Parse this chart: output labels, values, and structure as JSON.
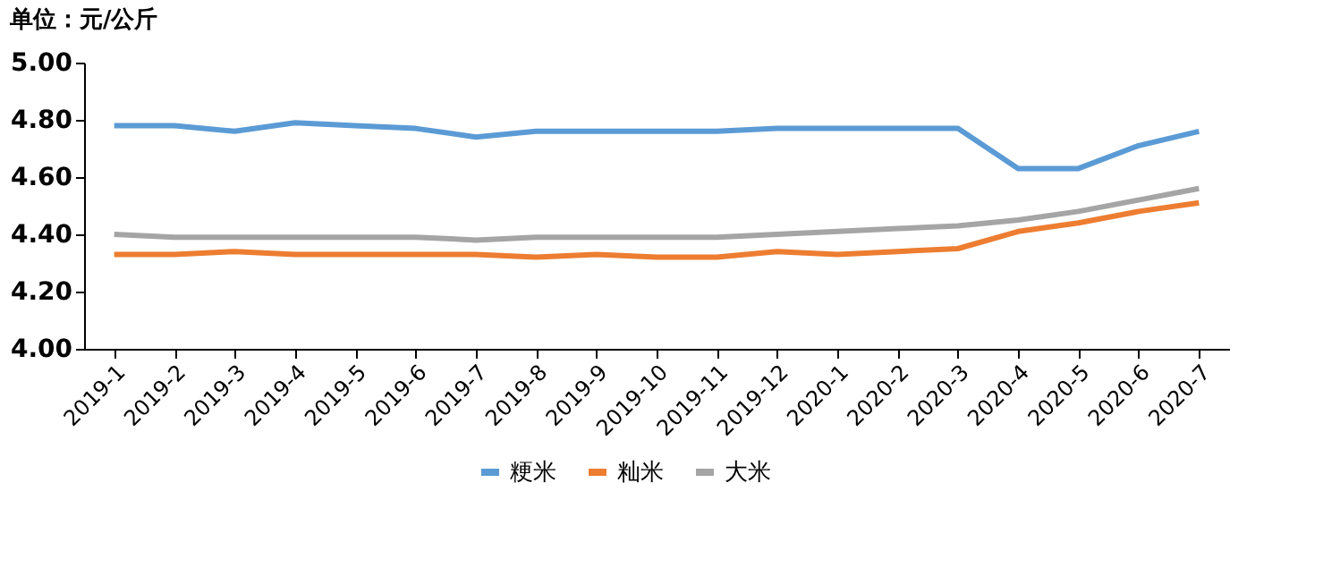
{
  "chart_data": {
    "type": "line",
    "title": "单位：元/公斤",
    "categories": [
      "2019-1",
      "2019-2",
      "2019-3",
      "2019-4",
      "2019-5",
      "2019-6",
      "2019-7",
      "2019-8",
      "2019-9",
      "2019-10",
      "2019-11",
      "2019-12",
      "2020-1",
      "2020-2",
      "2020-3",
      "2020-4",
      "2020-5",
      "2020-6",
      "2020-7"
    ],
    "series": [
      {
        "name": "粳米",
        "color": "#5b9bd5",
        "values": [
          4.78,
          4.78,
          4.76,
          4.79,
          4.78,
          4.77,
          4.74,
          4.76,
          4.76,
          4.76,
          4.76,
          4.77,
          4.77,
          4.77,
          4.77,
          4.63,
          4.63,
          4.71,
          4.76
        ]
      },
      {
        "name": "籼米",
        "color": "#ed7d31",
        "values": [
          4.33,
          4.33,
          4.34,
          4.33,
          4.33,
          4.33,
          4.33,
          4.32,
          4.33,
          4.32,
          4.32,
          4.34,
          4.33,
          4.34,
          4.35,
          4.41,
          4.44,
          4.48,
          4.51
        ]
      },
      {
        "name": "大米",
        "color": "#a5a5a5",
        "values": [
          4.4,
          4.39,
          4.39,
          4.39,
          4.39,
          4.39,
          4.38,
          4.39,
          4.39,
          4.39,
          4.39,
          4.4,
          4.41,
          4.42,
          4.43,
          4.45,
          4.48,
          4.52,
          4.56
        ]
      }
    ],
    "ylim": [
      4.0,
      5.0
    ],
    "yticks": [
      {
        "value": 4.0,
        "label": "4.00"
      },
      {
        "value": 4.2,
        "label": "4.20"
      },
      {
        "value": 4.4,
        "label": "4.40"
      },
      {
        "value": 4.6,
        "label": "4.60"
      },
      {
        "value": 4.8,
        "label": "4.80"
      },
      {
        "value": 5.0,
        "label": "5.00"
      }
    ],
    "grid": false,
    "legend": "bottom",
    "marker": "none",
    "line_style": "solid"
  }
}
